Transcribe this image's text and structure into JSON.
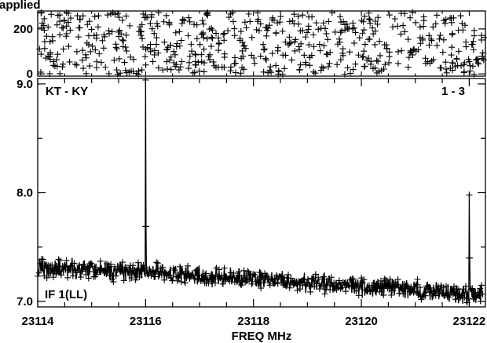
{
  "header_text": "applied",
  "chart_data": [
    {
      "type": "scatter",
      "panel": "phase",
      "y_ticks": [
        0,
        200
      ],
      "ylim": [
        -10,
        280
      ],
      "xlim": [
        23114,
        23122.3
      ],
      "marker": "+",
      "n_points": 600,
      "phase_wrap_sample": [
        [
          23114.05,
          263
        ],
        [
          23114.3,
          120
        ],
        [
          23114.6,
          35
        ],
        [
          23114.9,
          210
        ],
        [
          23115.2,
          300
        ],
        [
          23115.5,
          80
        ],
        [
          23115.8,
          160
        ],
        [
          23116.1,
          240
        ],
        [
          23116.4,
          20
        ],
        [
          23116.7,
          190
        ],
        [
          23117.0,
          110
        ],
        [
          23117.3,
          270
        ],
        [
          23117.6,
          55
        ],
        [
          23117.9,
          225
        ],
        [
          23118.2,
          140
        ],
        [
          23118.5,
          10
        ],
        [
          23118.8,
          250
        ],
        [
          23119.1,
          95
        ],
        [
          23119.4,
          175
        ],
        [
          23119.7,
          305
        ],
        [
          23120.0,
          45
        ],
        [
          23120.3,
          215
        ],
        [
          23120.6,
          130
        ],
        [
          23120.9,
          280
        ],
        [
          23121.2,
          70
        ],
        [
          23121.5,
          195
        ],
        [
          23121.8,
          15
        ],
        [
          23122.1,
          235
        ]
      ]
    },
    {
      "type": "line",
      "panel": "amplitude",
      "title": "KT - KY",
      "corner_label": "1 - 3",
      "series_label": "IF 1(LL)",
      "xlabel": "FREQ MHz",
      "x_ticks": [
        23114,
        23116,
        23118,
        23120,
        23122
      ],
      "y_ticks": [
        "7.0",
        "8.0",
        "9.0"
      ],
      "xlim": [
        23114,
        23122.3
      ],
      "ylim": [
        6.95,
        9.05
      ],
      "marker": "+",
      "baseline": [
        {
          "x": 23114.0,
          "y": 7.3
        },
        {
          "x": 23115.0,
          "y": 7.29
        },
        {
          "x": 23116.0,
          "y": 7.27
        },
        {
          "x": 23117.0,
          "y": 7.23
        },
        {
          "x": 23118.0,
          "y": 7.21
        },
        {
          "x": 23119.0,
          "y": 7.17
        },
        {
          "x": 23120.0,
          "y": 7.14
        },
        {
          "x": 23121.0,
          "y": 7.11
        },
        {
          "x": 23122.0,
          "y": 7.06
        }
      ],
      "spikes": [
        {
          "x": 23116.0,
          "y": 9.05,
          "secondary_y": 7.69
        },
        {
          "x": 23122.0,
          "y": 7.98,
          "secondary_y": 7.4
        }
      ],
      "n_points": 1024
    }
  ]
}
